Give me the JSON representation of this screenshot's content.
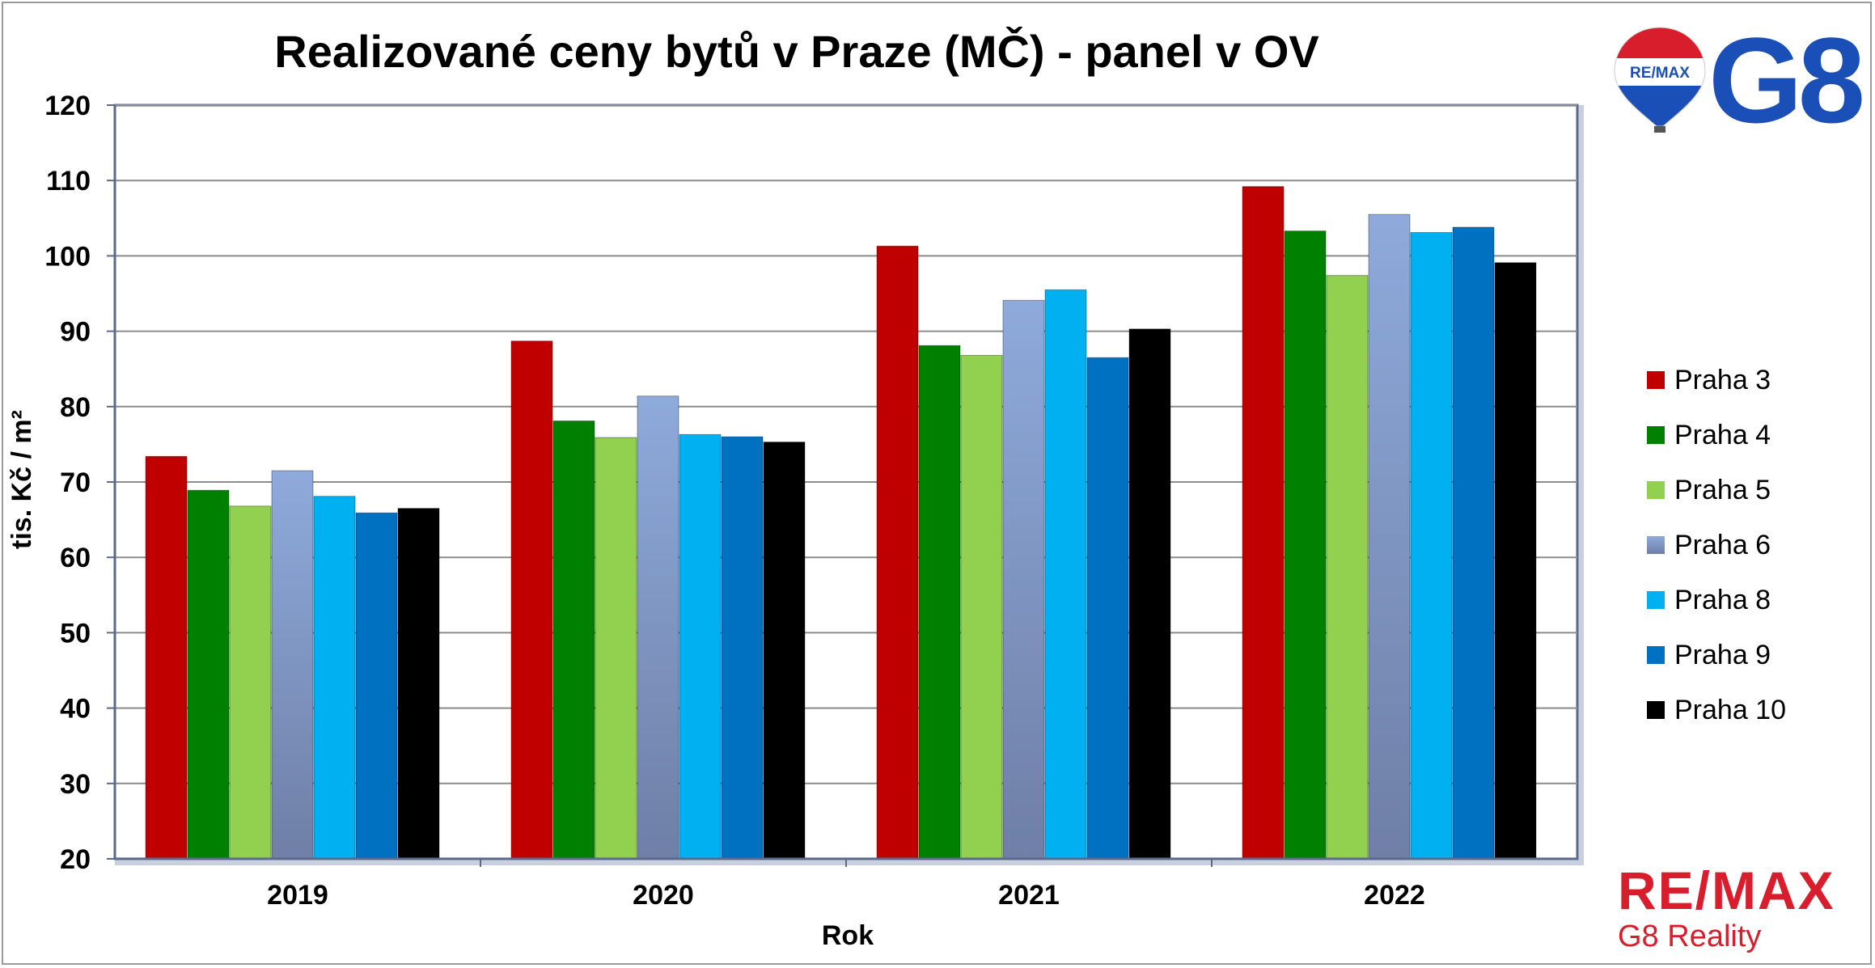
{
  "chart_data": {
    "type": "bar",
    "title": "Realizované ceny bytů v Praze (MČ) - panel v OV",
    "xlabel": "Rok",
    "ylabel": "tis. Kč / m²",
    "ylim": [
      20,
      120
    ],
    "yticks": [
      20,
      30,
      40,
      50,
      60,
      70,
      80,
      90,
      100,
      110,
      120
    ],
    "grid": true,
    "legend_position": "right",
    "categories": [
      "2019",
      "2020",
      "2021",
      "2022"
    ],
    "series": [
      {
        "name": "Praha 3",
        "color": "#c00000",
        "values": [
          73.4,
          88.7,
          101.3,
          109.2
        ]
      },
      {
        "name": "Praha 4",
        "color": "#008000",
        "values": [
          68.9,
          78.1,
          88.1,
          103.3
        ]
      },
      {
        "name": "Praha 5",
        "color": "#92d050",
        "values": [
          66.8,
          75.9,
          86.8,
          97.4
        ]
      },
      {
        "name": "Praha 6",
        "color": "#8eaadb",
        "values": [
          71.5,
          81.4,
          94.1,
          105.5
        ]
      },
      {
        "name": "Praha 8",
        "color": "#00b0f0",
        "values": [
          68.1,
          76.3,
          95.5,
          103.1
        ]
      },
      {
        "name": "Praha 9",
        "color": "#0070c0",
        "values": [
          65.9,
          76.0,
          86.5,
          103.8
        ]
      },
      {
        "name": "Praha 10",
        "color": "#000000",
        "values": [
          66.5,
          75.3,
          90.3,
          99.1
        ]
      }
    ]
  },
  "logo": {
    "balloon_text": "RE/MAX",
    "g8_text": "G8",
    "brand_name": "RE/MAX",
    "brand_sub": "G8 Reality",
    "brand_color": "#d81e2c",
    "g8_color": "#1b4fb8"
  }
}
